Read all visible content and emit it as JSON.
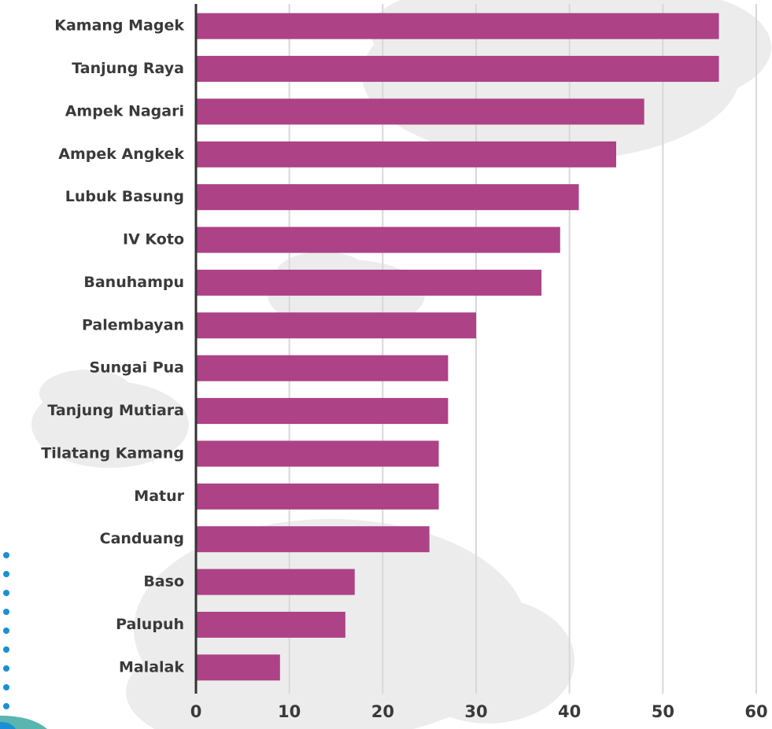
{
  "chart_data": {
    "type": "barh",
    "categories": [
      "Kamang Magek",
      "Tanjung Raya",
      "Ampek Nagari",
      "Ampek Angkek",
      "Lubuk Basung",
      "IV Koto",
      "Banuhampu",
      "Palembayan",
      "Sungai Pua",
      "Tanjung Mutiara",
      "Tilatang Kamang",
      "Matur",
      "Canduang",
      "Baso",
      "Palupuh",
      "Malalak"
    ],
    "values": [
      56,
      56,
      48,
      45,
      41,
      39,
      37,
      30,
      27,
      27,
      26,
      26,
      25,
      17,
      16,
      9
    ],
    "color": "#ad4286",
    "xlim": [
      0,
      60
    ],
    "xticks": [
      0,
      10,
      20,
      30,
      40,
      50,
      60
    ],
    "grid": true
  }
}
